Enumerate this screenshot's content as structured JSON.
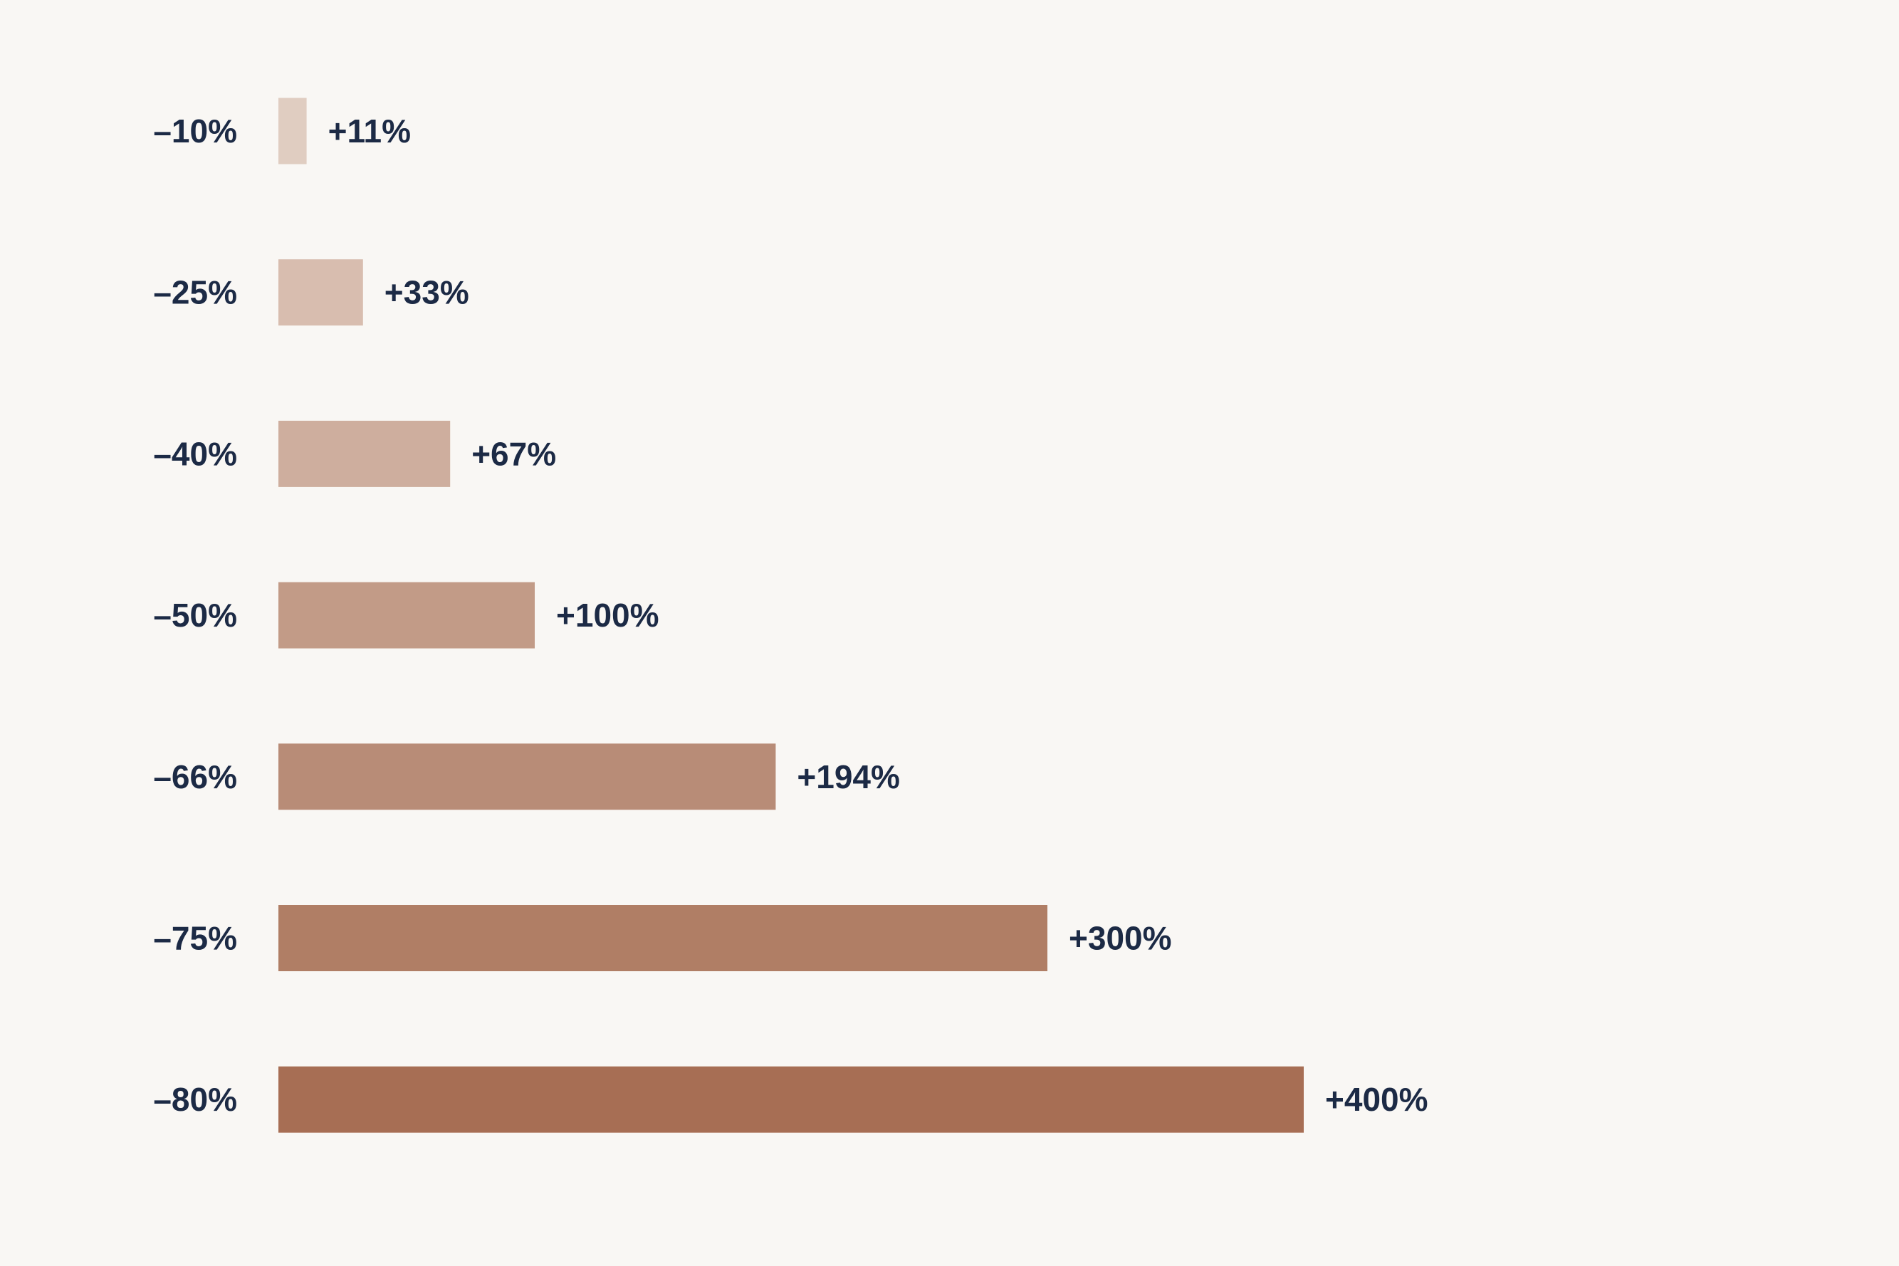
{
  "chart_data": {
    "type": "bar",
    "orientation": "horizontal",
    "categories": [
      "–10%",
      "–25%",
      "–40%",
      "–50%",
      "–66%",
      "–75%",
      "–80%"
    ],
    "values": [
      11,
      33,
      67,
      100,
      194,
      300,
      400
    ],
    "value_labels": [
      "+11%",
      "+33%",
      "+67%",
      "+100%",
      "+194%",
      "+300%",
      "+400%"
    ],
    "bar_colors": [
      "#e0cdc1",
      "#d8bdaf",
      "#ceae9e",
      "#c29b87",
      "#b88c77",
      "#b07e65",
      "#a76e54"
    ],
    "text_color": "#1c2a45",
    "background": "#f9f7f4",
    "xlim": [
      0,
      400
    ],
    "title": "",
    "xlabel": "",
    "ylabel": "",
    "grid": false,
    "legend": "none"
  }
}
